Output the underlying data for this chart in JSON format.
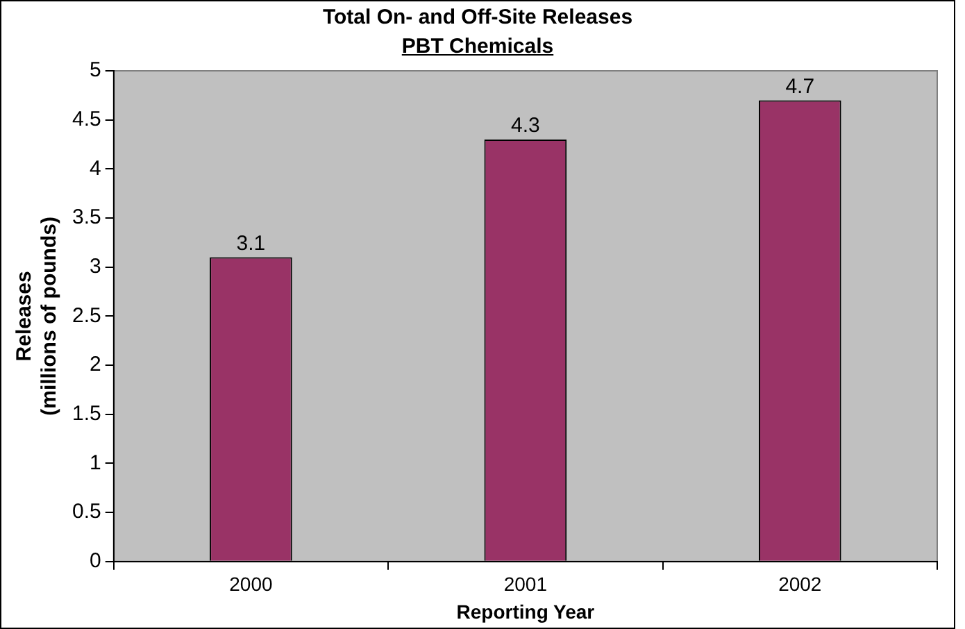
{
  "chart_data": {
    "type": "bar",
    "title": "Total On- and Off-Site Releases",
    "subtitle": "PBT Chemicals",
    "xlabel": "Reporting Year",
    "ylabel": "Releases\n(millions of pounds)",
    "categories": [
      "2000",
      "2001",
      "2002"
    ],
    "values": [
      3.1,
      4.3,
      4.7
    ],
    "color": "#993366",
    "ylim": [
      0,
      5
    ],
    "yticks": [
      0,
      0.5,
      1,
      1.5,
      2,
      2.5,
      3,
      3.5,
      4,
      4.5,
      5
    ],
    "grid": false,
    "legend": false,
    "data_labels": true
  }
}
